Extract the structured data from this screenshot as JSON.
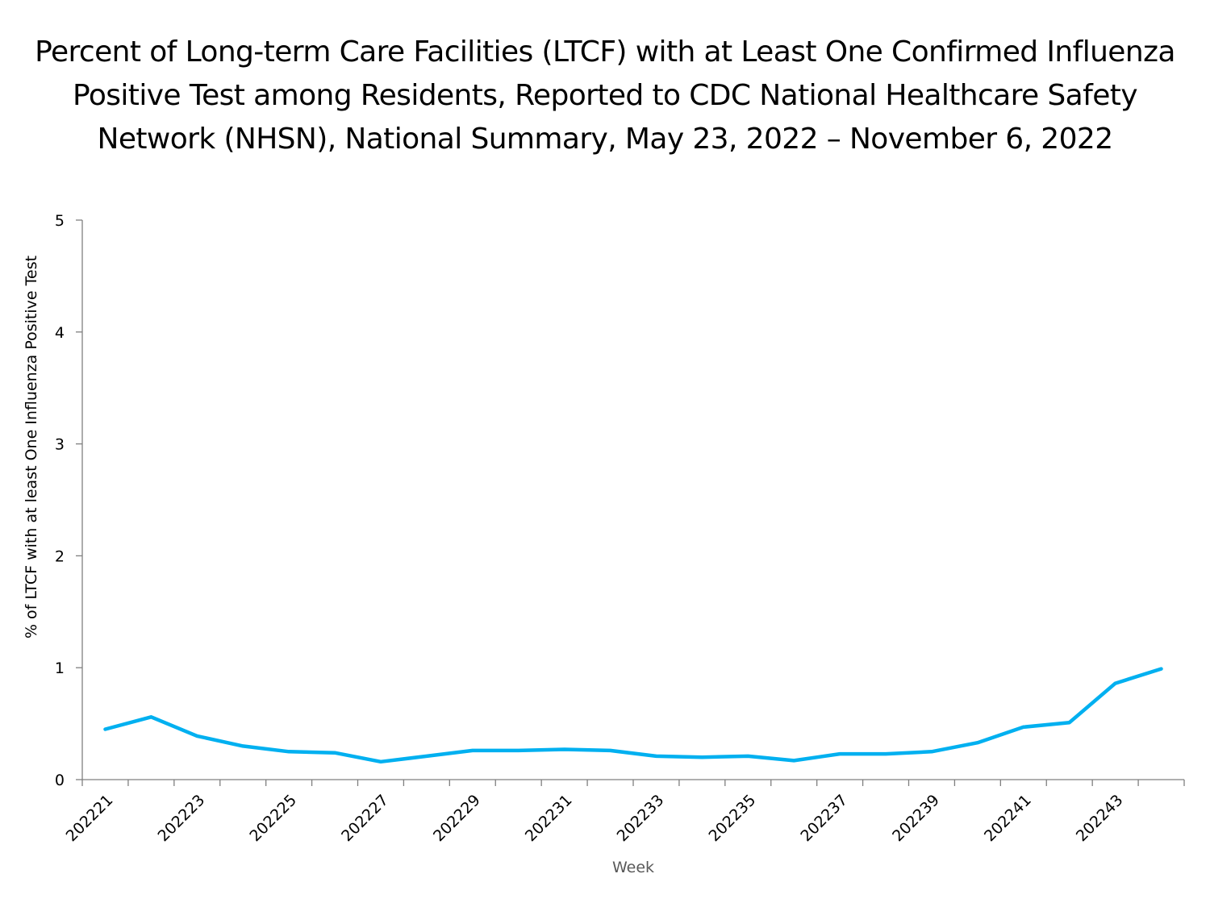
{
  "chart_data": {
    "type": "line",
    "title_lines": [
      "Percent of Long-term Care Facilities (LTCF) with at Least One Confirmed Influenza",
      "Positive Test among Residents, Reported to CDC National Healthcare Safety",
      "Network (NHSN), National Summary, May 23, 2022 – November 6, 2022"
    ],
    "xlabel": "Week",
    "ylabel": "% of LTCF with at least One Influenza Positive Test",
    "ylim": [
      0,
      5
    ],
    "yticks": [
      "0",
      "1",
      "2",
      "3",
      "4",
      "5"
    ],
    "grid": false,
    "legend": "none",
    "categories": [
      "202221",
      "202222",
      "202223",
      "202224",
      "202225",
      "202226",
      "202227",
      "202228",
      "202229",
      "202230",
      "202231",
      "202232",
      "202233",
      "202234",
      "202235",
      "202236",
      "202237",
      "202238",
      "202239",
      "202240",
      "202241",
      "202242",
      "202243",
      "202244"
    ],
    "xtick_labels_shown": [
      "202221",
      "202223",
      "202225",
      "202227",
      "202229",
      "202231",
      "202233",
      "202235",
      "202237",
      "202239",
      "202241",
      "202243"
    ],
    "series": [
      {
        "name": "% of LTCF with at least One Influenza Positive Test",
        "color": "#00B0F0",
        "values": [
          0.45,
          0.56,
          0.39,
          0.3,
          0.25,
          0.24,
          0.16,
          0.21,
          0.26,
          0.26,
          0.27,
          0.26,
          0.21,
          0.2,
          0.21,
          0.17,
          0.23,
          0.23,
          0.25,
          0.33,
          0.47,
          0.51,
          0.86,
          0.99
        ]
      }
    ]
  }
}
